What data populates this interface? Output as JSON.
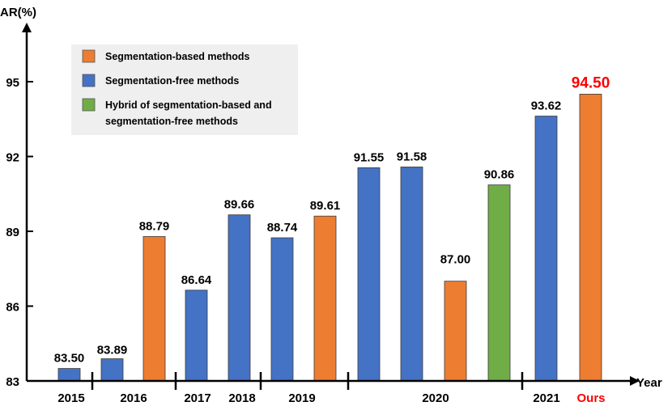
{
  "chart_data": {
    "type": "bar",
    "ylabel": "AR(%)",
    "xlabel": "Year",
    "ylim": [
      83,
      96.5
    ],
    "yticks": [
      83,
      86,
      89,
      92,
      95
    ],
    "legend": {
      "position": "top-left",
      "entries": [
        {
          "name": "Segmentation-based methods",
          "color": "#ED7D31"
        },
        {
          "name": "Segmentation-free methods",
          "color": "#4472C4"
        },
        {
          "name": "Hybrid of segmentation-based and segmentation-free methods",
          "color": "#70AD47",
          "lines": [
            "Hybrid of segmentation-based and",
            "segmentation-free methods"
          ]
        }
      ]
    },
    "bars": [
      {
        "value": 83.5,
        "label": "83.50",
        "kind": "free"
      },
      {
        "value": 83.89,
        "label": "83.89",
        "kind": "free"
      },
      {
        "value": 88.79,
        "label": "88.79",
        "kind": "based"
      },
      {
        "value": 86.64,
        "label": "86.64",
        "kind": "free"
      },
      {
        "value": 89.66,
        "label": "89.66",
        "kind": "free"
      },
      {
        "value": 88.74,
        "label": "88.74",
        "kind": "free"
      },
      {
        "value": 89.61,
        "label": "89.61",
        "kind": "based"
      },
      {
        "value": 91.55,
        "label": "91.55",
        "kind": "free"
      },
      {
        "value": 91.58,
        "label": "91.58",
        "kind": "free"
      },
      {
        "value": 87.0,
        "label": "87.00",
        "kind": "based"
      },
      {
        "value": 90.86,
        "label": "90.86",
        "kind": "hybrid"
      },
      {
        "value": 93.62,
        "label": "93.62",
        "kind": "free"
      },
      {
        "value": 94.5,
        "label": "94.50",
        "kind": "based",
        "highlight": true
      }
    ],
    "year_groups": [
      {
        "label": "2015",
        "bars": [
          0
        ]
      },
      {
        "label": "2016",
        "bars": [
          1,
          2
        ]
      },
      {
        "label": "2017",
        "bars": [
          3
        ]
      },
      {
        "label": "2018",
        "bars": [
          4
        ]
      },
      {
        "label": "2019",
        "bars": [
          5,
          6
        ]
      },
      {
        "label": "2020",
        "bars": [
          7,
          8,
          9,
          10
        ]
      },
      {
        "label": "2021",
        "bars": [
          11
        ]
      },
      {
        "label": "Ours",
        "bars": [
          12
        ],
        "highlight": true
      }
    ],
    "colors": {
      "based": "#ED7D31",
      "free": "#4472C4",
      "hybrid": "#70AD47",
      "highlight_text": "#FF0000",
      "legend_bg": "#EFEFEF"
    }
  }
}
